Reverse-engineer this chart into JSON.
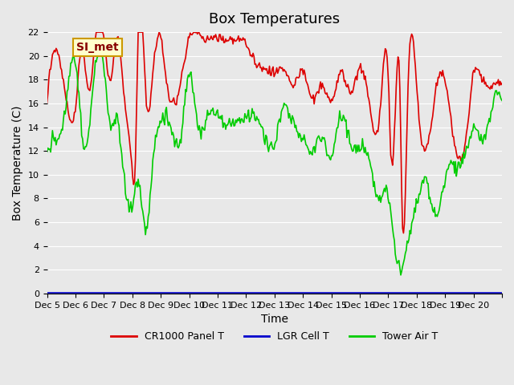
{
  "title": "Box Temperatures",
  "xlabel": "Time",
  "ylabel": "Box Temperature (C)",
  "ylim": [
    0,
    22
  ],
  "yticks": [
    0,
    2,
    4,
    6,
    8,
    10,
    12,
    14,
    16,
    18,
    20,
    22
  ],
  "background_color": "#e8e8e8",
  "plot_bg_color": "#e8e8e8",
  "annotation_text": "SI_met",
  "annotation_bg": "#ffffcc",
  "annotation_border": "#cc9900",
  "legend_entries": [
    "CR1000 Panel T",
    "LGR Cell T",
    "Tower Air T"
  ],
  "line_colors": [
    "#dd0000",
    "#0000cc",
    "#00cc00"
  ],
  "n_points": 500,
  "x_start": 4,
  "x_end": 20,
  "xtick_positions": [
    4,
    5,
    6,
    7,
    8,
    9,
    10,
    11,
    12,
    13,
    14,
    15,
    16,
    17,
    18,
    19,
    20
  ],
  "xtick_labels": [
    "Dec 5",
    "Dec 6",
    "Dec 7",
    "Dec 8",
    "Dec 9",
    "Dec 10",
    "Dec 11",
    "Dec 12",
    "Dec 13",
    "Dec 14",
    "Dec 15",
    "Dec 16",
    "Dec 17",
    "Dec 18",
    "Dec 19",
    "Dec 20",
    ""
  ],
  "grid_color": "#ffffff",
  "title_fontsize": 13,
  "axis_fontsize": 10,
  "tick_fontsize": 8
}
